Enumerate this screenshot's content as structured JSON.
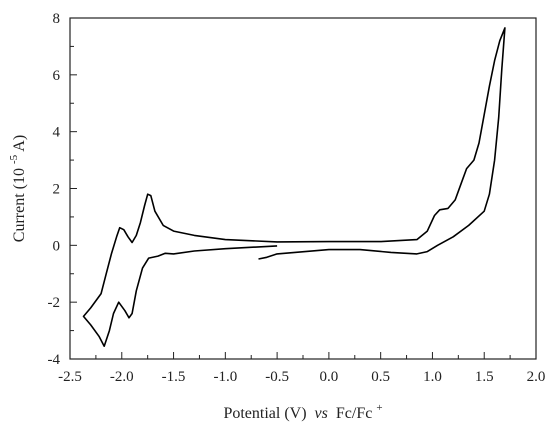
{
  "chart_data": {
    "type": "line",
    "xlabel": "Potential (V)",
    "xlabel_italic": "vs",
    "xlabel_ref": "Fc/Fc",
    "xlabel_sup": "+",
    "ylabel_pre": "Current (10",
    "ylabel_sup": "-5",
    "ylabel_post": " A)",
    "xlim": [
      -2.5,
      2.0
    ],
    "ylim": [
      -4,
      8
    ],
    "xticks": [
      -2.5,
      -2.0,
      -1.5,
      -1.0,
      -0.5,
      0.0,
      0.5,
      1.0,
      1.5,
      2.0
    ],
    "xtick_labels": [
      "-2.5",
      "-2.0",
      "-1.5",
      "-1.0",
      "-0.5",
      "0.0",
      "0.5",
      "1.0",
      "1.5",
      "2.0"
    ],
    "yticks": [
      -4,
      -2,
      0,
      2,
      4,
      6,
      8
    ],
    "ytick_labels": [
      "-4",
      "-2",
      "0",
      "2",
      "4",
      "6",
      "8"
    ],
    "grid": false,
    "series": [
      {
        "color": "#000000",
        "points": [
          [
            -0.5,
            -0.02
          ],
          [
            -1.0,
            -0.12
          ],
          [
            -1.3,
            -0.2
          ],
          [
            -1.5,
            -0.3
          ],
          [
            -1.58,
            -0.28
          ],
          [
            -1.65,
            -0.38
          ],
          [
            -1.74,
            -0.45
          ],
          [
            -1.8,
            -0.8
          ],
          [
            -1.86,
            -1.6
          ],
          [
            -1.9,
            -2.4
          ],
          [
            -1.93,
            -2.55
          ],
          [
            -1.97,
            -2.3
          ],
          [
            -2.03,
            -2.0
          ],
          [
            -2.08,
            -2.4
          ],
          [
            -2.12,
            -3.0
          ],
          [
            -2.17,
            -3.55
          ],
          [
            -2.22,
            -3.2
          ],
          [
            -2.3,
            -2.8
          ],
          [
            -2.37,
            -2.5
          ],
          [
            -2.3,
            -2.2
          ],
          [
            -2.2,
            -1.7
          ],
          [
            -2.15,
            -1.0
          ],
          [
            -2.1,
            -0.3
          ],
          [
            -2.05,
            0.3
          ],
          [
            -2.02,
            0.62
          ],
          [
            -1.98,
            0.55
          ],
          [
            -1.94,
            0.3
          ],
          [
            -1.9,
            0.1
          ],
          [
            -1.86,
            0.35
          ],
          [
            -1.82,
            0.8
          ],
          [
            -1.78,
            1.4
          ],
          [
            -1.75,
            1.8
          ],
          [
            -1.72,
            1.75
          ],
          [
            -1.68,
            1.2
          ],
          [
            -1.6,
            0.7
          ],
          [
            -1.5,
            0.5
          ],
          [
            -1.3,
            0.35
          ],
          [
            -1.0,
            0.2
          ],
          [
            -0.5,
            0.12
          ],
          [
            0.0,
            0.13
          ],
          [
            0.5,
            0.13
          ],
          [
            0.85,
            0.2
          ],
          [
            0.95,
            0.5
          ],
          [
            1.02,
            1.05
          ],
          [
            1.07,
            1.25
          ],
          [
            1.15,
            1.3
          ],
          [
            1.22,
            1.6
          ],
          [
            1.28,
            2.2
          ],
          [
            1.33,
            2.7
          ],
          [
            1.4,
            3.0
          ],
          [
            1.45,
            3.6
          ],
          [
            1.5,
            4.6
          ],
          [
            1.55,
            5.6
          ],
          [
            1.6,
            6.5
          ],
          [
            1.65,
            7.2
          ],
          [
            1.7,
            7.65
          ],
          [
            1.67,
            6.2
          ],
          [
            1.64,
            4.5
          ],
          [
            1.6,
            3.0
          ],
          [
            1.55,
            1.8
          ],
          [
            1.5,
            1.2
          ],
          [
            1.35,
            0.7
          ],
          [
            1.2,
            0.3
          ],
          [
            1.05,
            0.0
          ],
          [
            0.95,
            -0.22
          ],
          [
            0.85,
            -0.3
          ],
          [
            0.6,
            -0.25
          ],
          [
            0.3,
            -0.15
          ],
          [
            0.0,
            -0.15
          ],
          [
            -0.5,
            -0.3
          ],
          [
            -0.6,
            -0.42
          ],
          [
            -0.68,
            -0.48
          ]
        ]
      }
    ]
  }
}
